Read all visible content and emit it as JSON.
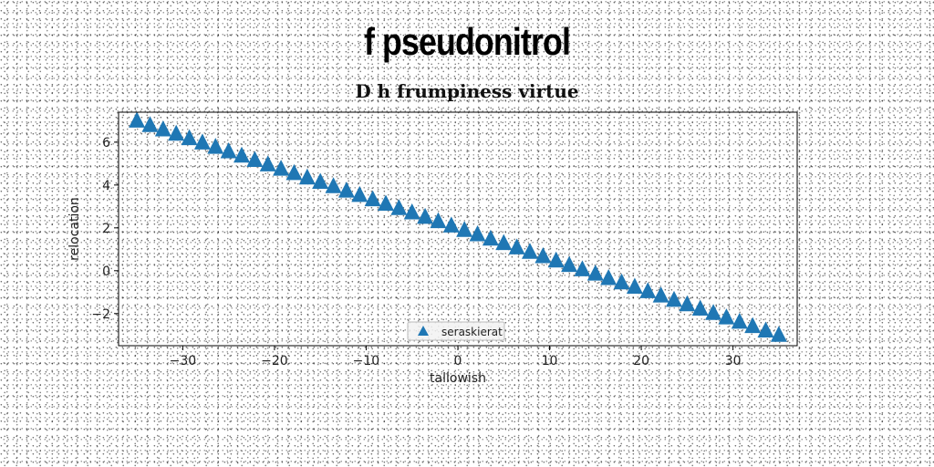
{
  "figure": {
    "title": "f pseudonitrol"
  },
  "chart_data": {
    "type": "scatter",
    "title": "D h frumpiness virtue",
    "xlabel": "tallowish",
    "ylabel": "relocation",
    "xlim": [
      -37,
      37
    ],
    "ylim": [
      -3.5,
      7.4
    ],
    "xticks": [
      -30,
      -20,
      -10,
      0,
      10,
      20,
      30
    ],
    "yticks": [
      -2,
      0,
      2,
      4,
      6
    ],
    "grid": false,
    "legend_position": "lower-center",
    "marker": "triangle-up",
    "color": "#1f77b4",
    "series": [
      {
        "name": "seraskierat",
        "x_start": -35,
        "x_end": 35,
        "count": 50,
        "y_start": 7.0,
        "y_end": -3.0
      }
    ]
  }
}
